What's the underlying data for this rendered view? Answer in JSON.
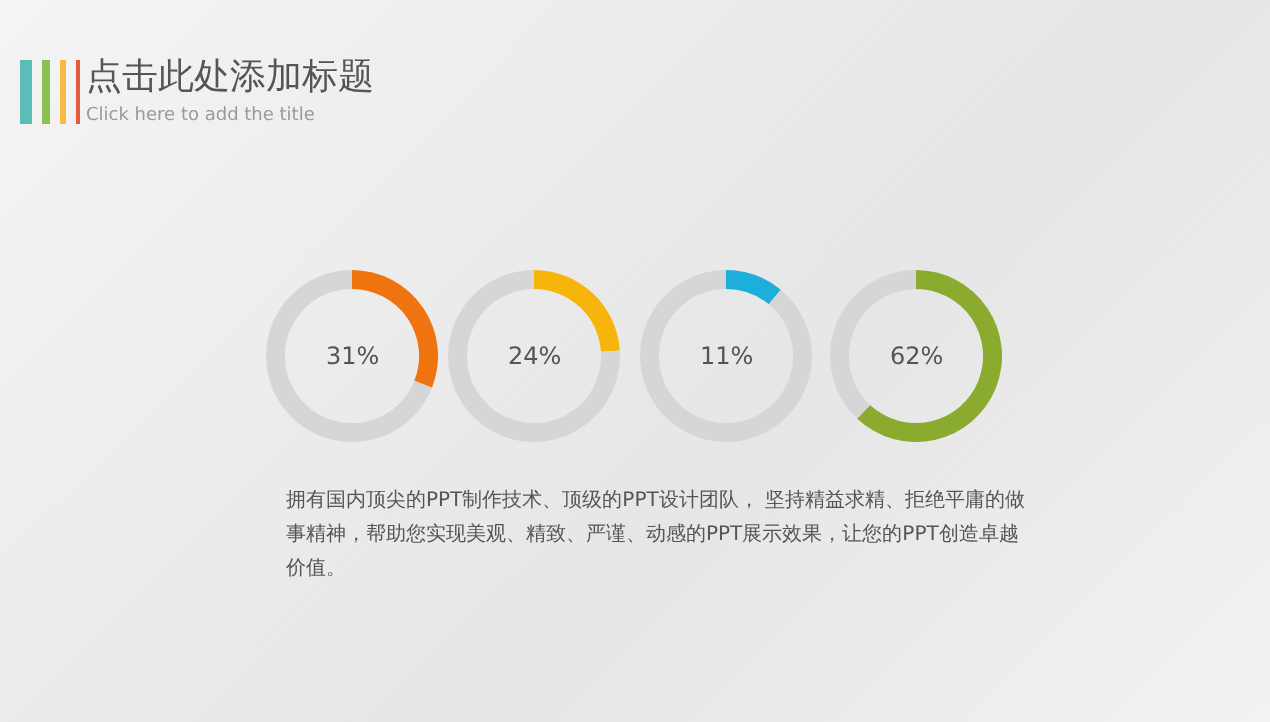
{
  "chart_data": [
    {
      "type": "other",
      "title": "点击此处添加标题",
      "subtitle": "Click here to add the title"
    },
    {
      "type": "donut",
      "categories": [
        null,
        null
      ],
      "values": [
        31,
        69
      ],
      "colors": [
        "#ef7410",
        "#d6d6d6"
      ],
      "annotations": [
        "31%"
      ]
    },
    {
      "type": "donut",
      "categories": [
        null,
        null
      ],
      "values": [
        24,
        76
      ],
      "colors": [
        "#f7b50c",
        "#d6d6d6"
      ],
      "annotations": [
        "24%"
      ]
    },
    {
      "type": "donut",
      "categories": [
        null,
        null
      ],
      "values": [
        11,
        89
      ],
      "colors": [
        "#1eaedc",
        "#d6d6d6"
      ],
      "annotations": [
        "11%"
      ]
    },
    {
      "type": "donut",
      "categories": [
        null,
        null
      ],
      "values": [
        62,
        38
      ],
      "colors": [
        "#8aab2e",
        "#d6d6d6"
      ],
      "annotations": [
        "62%"
      ]
    },
    {
      "type": "other",
      "annotations": [
        "拥有国内顶尖的PPT制作技术、顶级的PPT设计团队， 坚持精益求精、拒绝平庸的做事精神，帮助您实现美观、精致、严谨、动感的PPT展示效果，让您的PPT创造卓越价值。"
      ]
    }
  ]
}
